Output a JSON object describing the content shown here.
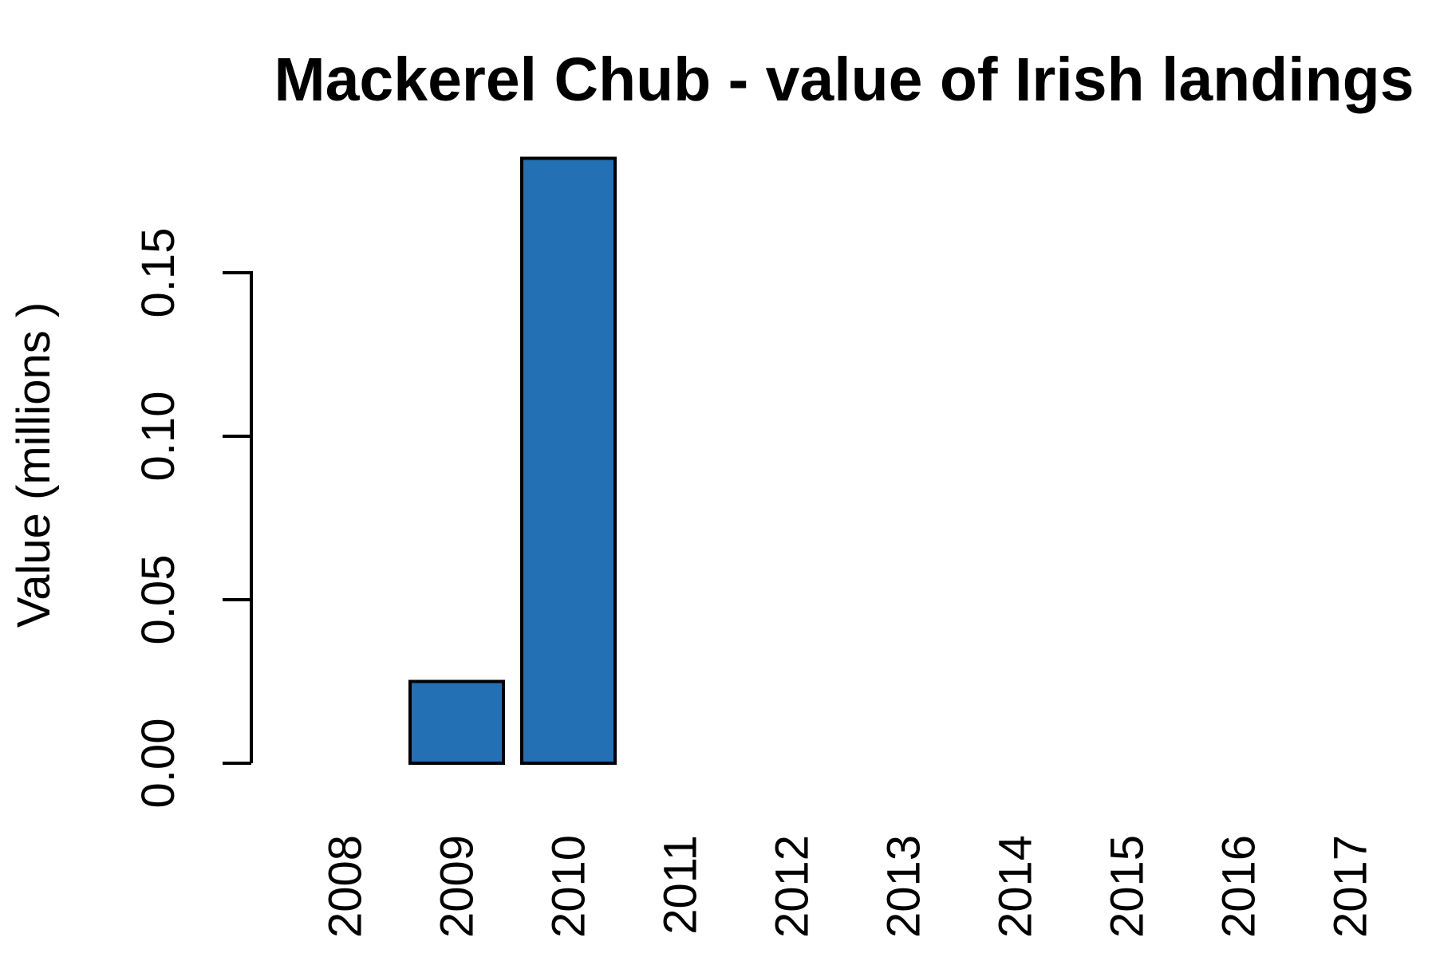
{
  "chart_data": {
    "type": "bar",
    "title": "Mackerel Chub - value of Irish landings",
    "xlabel": "",
    "ylabel": "Value (millions )",
    "categories": [
      "2008",
      "2009",
      "2010",
      "2011",
      "2012",
      "2013",
      "2014",
      "2015",
      "2016",
      "2017"
    ],
    "values": [
      0.0,
      0.025,
      0.185,
      null,
      null,
      null,
      null,
      null,
      null,
      null
    ],
    "yticks": [
      "0.00",
      "0.05",
      "0.10",
      "0.15"
    ],
    "ylim": [
      0,
      0.185
    ],
    "bar_color": "#2470b4",
    "grid": false,
    "legend": "none"
  }
}
